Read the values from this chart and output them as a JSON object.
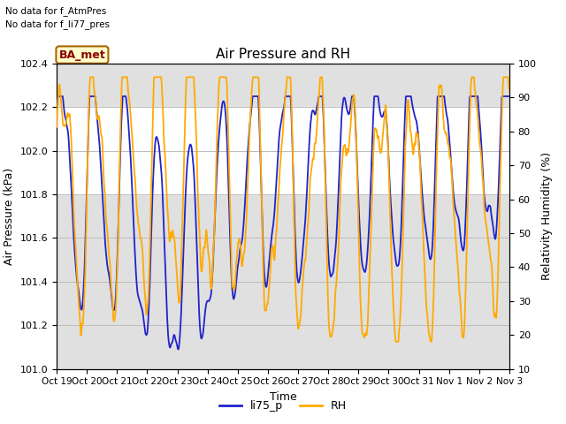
{
  "title": "Air Pressure and RH",
  "xlabel": "Time",
  "ylabel_left": "Air Pressure (kPa)",
  "ylabel_right": "Relativity Humidity (%)",
  "text_no_data_1": "No data for f_AtmPres",
  "text_no_data_2": "No data for f_li77_pres",
  "box_label": "BA_met",
  "ylim_left": [
    101.0,
    102.4
  ],
  "ylim_right": [
    10,
    100
  ],
  "yticks_left": [
    101.0,
    101.2,
    101.4,
    101.6,
    101.8,
    102.0,
    102.2,
    102.4
  ],
  "yticks_right": [
    10,
    20,
    30,
    40,
    50,
    60,
    70,
    80,
    90,
    100
  ],
  "xtick_labels": [
    "Oct 19",
    "Oct 20",
    "Oct 21",
    "Oct 22",
    "Oct 23",
    "Oct 24",
    "Oct 25",
    "Oct 26",
    "Oct 27",
    "Oct 28",
    "Oct 29",
    "Oct 30",
    "Oct 31",
    "Nov 1",
    "Nov 2",
    "Nov 3"
  ],
  "color_blue": "#2222cc",
  "color_orange": "#ffaa00",
  "bg_color": "#e0e0e0",
  "band_color": "#efefef",
  "legend_labels": [
    "li75_p",
    "RH"
  ],
  "num_points": 1500,
  "seed": 7
}
